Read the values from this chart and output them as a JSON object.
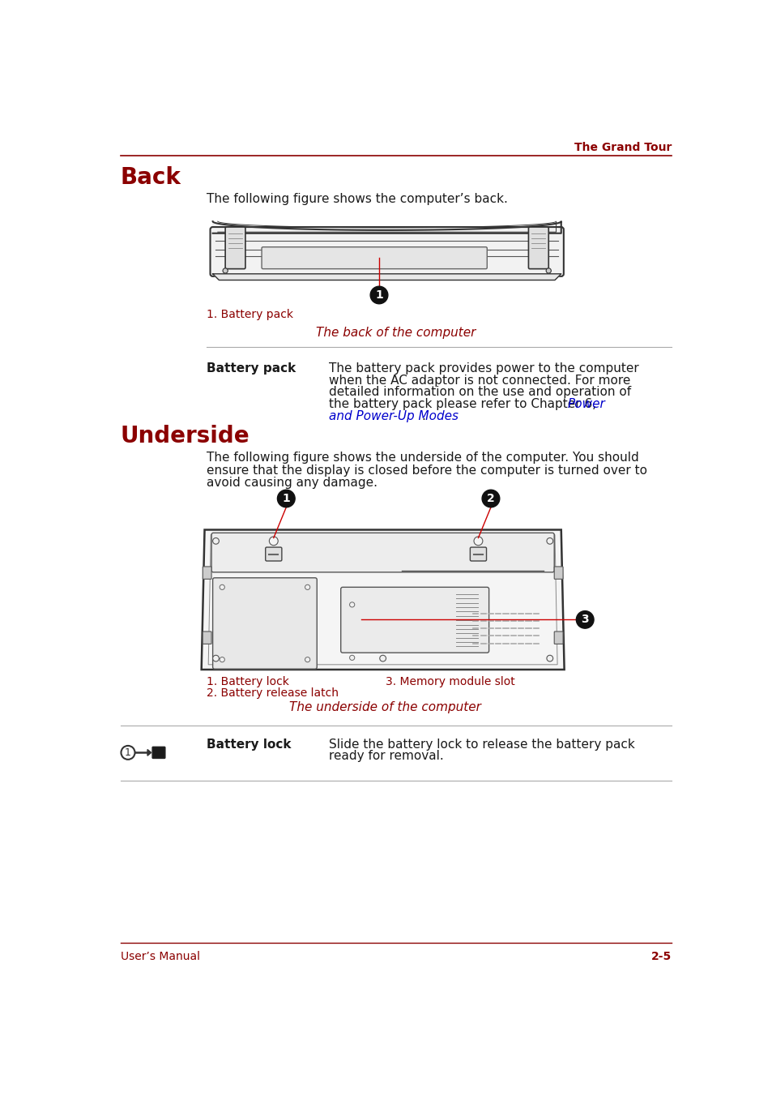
{
  "bg_color": "#ffffff",
  "header_text": "The Grand Tour",
  "header_color": "#8b0000",
  "header_line_color": "#8b0000",
  "footer_left": "User’s Manual",
  "footer_right": "2-5",
  "footer_color": "#8b0000",
  "footer_line_color": "#8b0000",
  "section1_title": "Back",
  "section1_title_color": "#8b0000",
  "section1_intro": "The following figure shows the computer’s back.",
  "section1_label": "1. Battery pack",
  "section1_label_color": "#8b0000",
  "section1_caption": "The back of the computer",
  "section1_caption_color": "#8b0000",
  "section1_desc_title": "Battery pack",
  "section1_desc_text1": "The battery pack provides power to the computer",
  "section1_desc_text2": "when the AC adaptor is not connected. For more",
  "section1_desc_text3": "detailed information on the use and operation of",
  "section1_desc_text4": "the battery pack please refer to Chapter 6, ",
  "section1_desc_text4_link": "Power",
  "section1_desc_text5_link": "and Power-Up Modes",
  "section1_desc_text5_end": ".",
  "link_color": "#0000cc",
  "section2_title": "Underside",
  "section2_title_color": "#8b0000",
  "section2_intro1": "The following figure shows the underside of the computer. You should",
  "section2_intro2": "ensure that the display is closed before the computer is turned over to",
  "section2_intro3": "avoid causing any damage.",
  "section2_label1": "1. Battery lock",
  "section2_label2": "2. Battery release latch",
  "section2_label3": "3. Memory module slot",
  "section2_label_color": "#8b0000",
  "section2_caption": "The underside of the computer",
  "section2_caption_color": "#8b0000",
  "section2_desc_title": "Battery lock",
  "section2_desc_text1": "Slide the battery lock to release the battery pack",
  "section2_desc_text2": "ready for removal.",
  "text_color": "#1a1a1a",
  "line_color": "#aaaaaa",
  "diagram_line": "#333333",
  "red_line": "#cc0000"
}
